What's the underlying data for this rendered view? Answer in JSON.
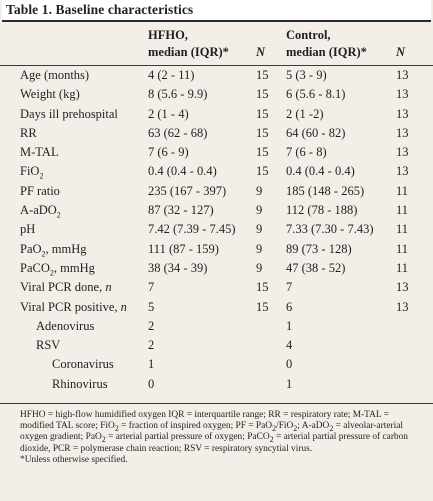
{
  "title": "Table 1. Baseline characteristics",
  "header": {
    "hfho_line1": "HFHO,",
    "hfho_line2": "median (IQR)*",
    "n1": "N",
    "control_line1": "Control,",
    "control_line2": "median (IQR)*",
    "n2": "N"
  },
  "rows": [
    {
      "label": "Age (months)",
      "hfho": "4 (2 - 11)",
      "n1": "15",
      "control": "5 (3 - 9)",
      "n2": "13",
      "indent": 0
    },
    {
      "label": "Weight (kg)",
      "hfho": "8 (5.6 - 9.9)",
      "n1": "15",
      "control": "6 (5.6 - 8.1)",
      "n2": "13",
      "indent": 0
    },
    {
      "label": "Days ill prehospital",
      "hfho": "2 (1 - 4)",
      "n1": "15",
      "control": "2 (1 -2)",
      "n2": "13",
      "indent": 0
    },
    {
      "label": "RR",
      "hfho": "63 (62 - 68)",
      "n1": "15",
      "control": "64 (60 - 82)",
      "n2": "13",
      "indent": 0
    },
    {
      "label": "M-TAL",
      "hfho": "7 (6 - 9)",
      "n1": "15",
      "control": "7 (6 - 8)",
      "n2": "13",
      "indent": 0
    },
    {
      "label": "FiO",
      "label_sub": "2",
      "hfho": "0.4 (0.4 - 0.4)",
      "n1": "15",
      "control": "0.4 (0.4 - 0.4)",
      "n2": "13",
      "indent": 0
    },
    {
      "label": "PF ratio",
      "hfho": "235 (167 - 397)",
      "n1": "9",
      "control": "185 (148 - 265)",
      "n2": "11",
      "indent": 0
    },
    {
      "label": "A-aDO",
      "label_sub": "2",
      "hfho": "87 (32 - 127)",
      "n1": "9",
      "control": "112 (78 - 188)",
      "n2": "11",
      "indent": 0
    },
    {
      "label": "pH",
      "hfho": "7.42 (7.39 - 7.45)",
      "n1": "9",
      "control": "7.33 (7.30 - 7.43)",
      "n2": "11",
      "indent": 0
    },
    {
      "label": "PaO",
      "label_sub": "2",
      "label_suffix": ", mmHg",
      "hfho": "111 (87 - 159)",
      "n1": "9",
      "control": "89 (73 - 128)",
      "n2": "11",
      "indent": 0
    },
    {
      "label": "PaCO",
      "label_sub": "2",
      "label_suffix": ", mmHg",
      "hfho": "38 (34 - 39)",
      "n1": "9",
      "control": "47 (38 - 52)",
      "n2": "11",
      "indent": 0
    },
    {
      "label": "Viral PCR done, ",
      "label_italic": "n",
      "hfho": "7",
      "n1": "15",
      "control": "7",
      "n2": "13",
      "indent": 0
    },
    {
      "label": "Viral PCR positive, ",
      "label_italic": "n",
      "hfho": "5",
      "n1": "15",
      "control": "6",
      "n2": "13",
      "indent": 0
    },
    {
      "label": "Adenovirus",
      "hfho": "2",
      "n1": "",
      "control": "1",
      "n2": "",
      "indent": 1
    },
    {
      "label": "RSV",
      "hfho": "2",
      "n1": "",
      "control": "4",
      "n2": "",
      "indent": 1
    },
    {
      "label": "Coronavirus",
      "hfho": "1",
      "n1": "",
      "control": "0",
      "n2": "",
      "indent": 2
    },
    {
      "label": "Rhinovirus",
      "hfho": "0",
      "n1": "",
      "control": "1",
      "n2": "",
      "indent": 2
    }
  ],
  "footnotes": {
    "line1": "HFHO = high-flow humidified oxygen IQR = interquartile range; RR = respiratory rate; M-TAL = modified TAL score; FiO",
    "line1_sub": "2",
    "line1_end": " = fraction of inspired oxygen;",
    "line2a": "PF = PaO",
    "line2a_sub1": "2",
    "line2b": "/FiO",
    "line2b_sub": "2",
    "line2c": "; A-aDO",
    "line2c_sub": "2",
    "line2d": " = alveolar-arterial oxygen gradient; PaO",
    "line2d_sub": "2",
    "line2e": " = arterial partial pressure of oxygen; PaCO",
    "line2e_sub": "2",
    "line2f": " = arterial partial pressure of carbon dioxide,",
    "line3": "PCR = polymerase chain reaction; RSV = respiratory syncytial virus.",
    "line4": "*Unless otherwise specified."
  }
}
